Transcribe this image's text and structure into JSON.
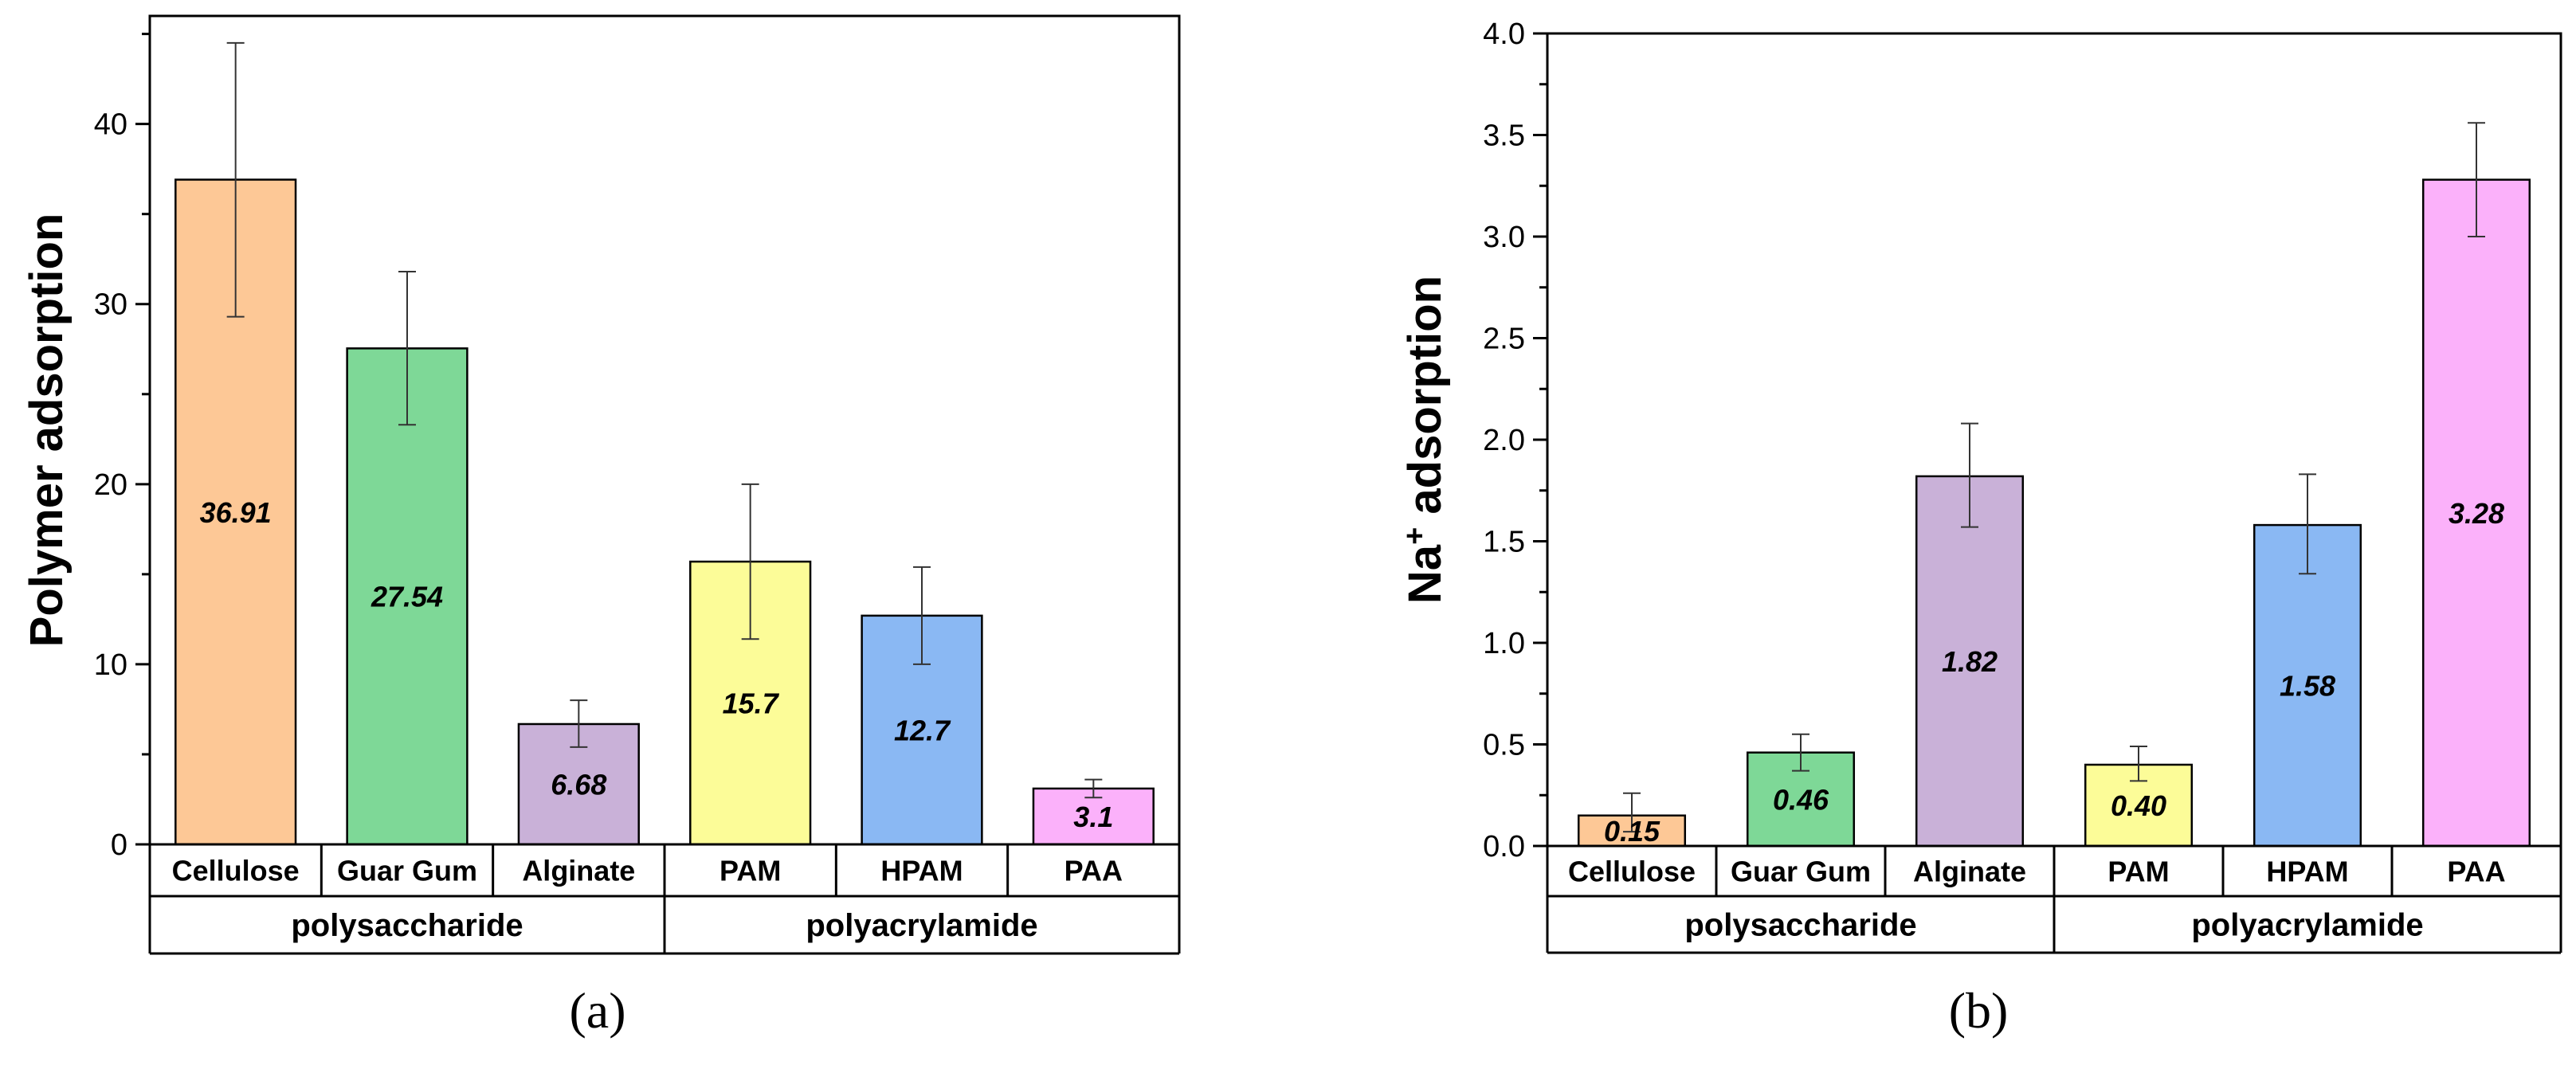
{
  "chart_data": [
    {
      "type": "bar",
      "panel": "(a)",
      "ylabel": "Polymer adsorption",
      "xlabel": "",
      "ylim": [
        0,
        46
      ],
      "yticks": [
        0,
        10,
        20,
        30,
        40
      ],
      "categories": [
        "Cellulose",
        "Guar Gum",
        "Alginate",
        "PAM",
        "HPAM",
        "PAA"
      ],
      "values": [
        36.91,
        27.54,
        6.68,
        15.7,
        12.7,
        3.1
      ],
      "value_labels": [
        "36.91",
        "27.54",
        "6.68",
        "15.7",
        "12.7",
        "3.1"
      ],
      "error_low": [
        29.3,
        23.3,
        5.4,
        11.4,
        10.0,
        2.6
      ],
      "error_high": [
        44.5,
        31.8,
        8.0,
        20.0,
        15.4,
        3.6
      ],
      "colors": [
        "#FDC896",
        "#7ED897",
        "#C9B1D8",
        "#FCFC98",
        "#8AB8F3",
        "#FBB1FA"
      ],
      "groups": [
        {
          "label": "polysaccharide",
          "span": 3
        },
        {
          "label": "polyacrylamide",
          "span": 3
        }
      ]
    },
    {
      "type": "bar",
      "panel": "(b)",
      "ylabel_main": "Na",
      "ylabel_sup": "+",
      "ylabel_rest": " adsorption",
      "xlabel": "",
      "ylim": [
        0,
        4.0
      ],
      "yticks": [
        0.0,
        0.5,
        1.0,
        1.5,
        2.0,
        2.5,
        3.0,
        3.5,
        4.0
      ],
      "ytick_labels": [
        "0.0",
        "0.5",
        "1.0",
        "1.5",
        "2.0",
        "2.5",
        "3.0",
        "3.5",
        "4.0"
      ],
      "categories": [
        "Cellulose",
        "Guar Gum",
        "Alginate",
        "PAM",
        "HPAM",
        "PAA"
      ],
      "values": [
        0.15,
        0.46,
        1.82,
        0.4,
        1.58,
        3.28
      ],
      "value_labels": [
        "0.15",
        "0.46",
        "1.82",
        "0.40",
        "1.58",
        "3.28"
      ],
      "error_low": [
        0.07,
        0.37,
        1.57,
        0.32,
        1.34,
        3.0
      ],
      "error_high": [
        0.26,
        0.55,
        2.08,
        0.49,
        1.83,
        3.56
      ],
      "colors": [
        "#FDC896",
        "#7ED897",
        "#C9B1D8",
        "#FCFC98",
        "#8AB8F3",
        "#FBB1FA"
      ],
      "groups": [
        {
          "label": "polysaccharide",
          "span": 3
        },
        {
          "label": "polyacrylamide",
          "span": 3
        }
      ]
    }
  ]
}
